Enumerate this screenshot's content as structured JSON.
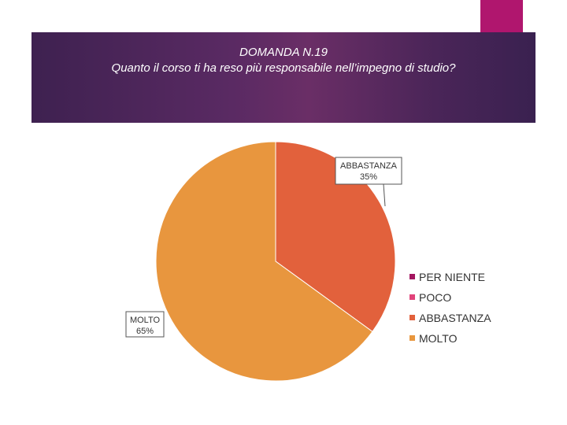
{
  "title": {
    "line1": "DOMANDA N.19",
    "line2": "Quanto il corso ti ha reso più responsabile nell’impegno di studio?"
  },
  "colors": {
    "accent": "#b0166e",
    "band": "#5a2a63"
  },
  "chart_data": {
    "type": "pie",
    "title": "DOMANDA N.19 Quanto il corso ti ha reso più responsabile nell’impegno di studio?",
    "categories": [
      "PER NIENTE",
      "POCO",
      "ABBASTANZA",
      "MOLTO"
    ],
    "values": [
      0,
      0,
      35,
      65
    ],
    "colors": [
      "#a3155f",
      "#e1437a",
      "#e2613c",
      "#e8963e"
    ],
    "data_labels": [
      {
        "category": "ABBASTANZA",
        "text": "ABBASTANZA",
        "percent": "35%"
      },
      {
        "category": "MOLTO",
        "text": "MOLTO",
        "percent": "65%"
      }
    ],
    "legend": {
      "position": "right",
      "items": [
        "PER NIENTE",
        "POCO",
        "ABBASTANZA",
        "MOLTO"
      ]
    }
  }
}
